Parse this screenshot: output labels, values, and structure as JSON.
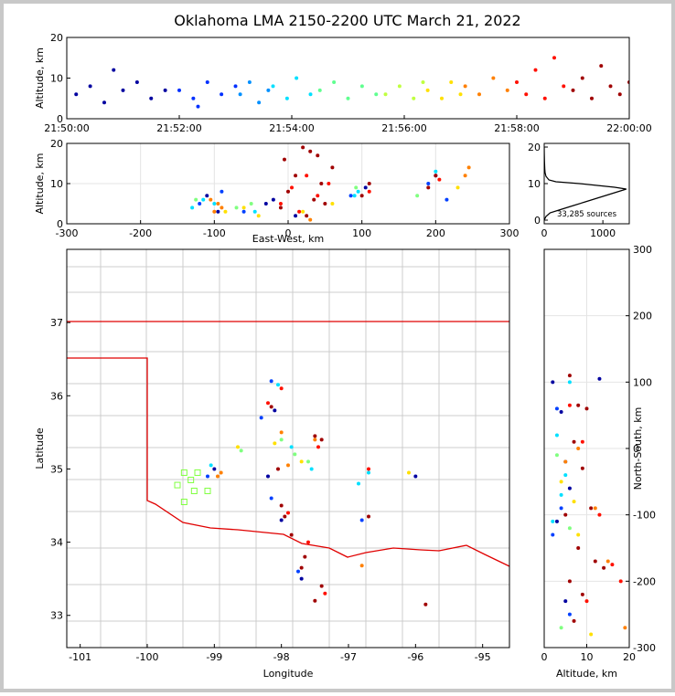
{
  "title": "Oklahoma LMA 2150-2200 UTC March 21, 2022",
  "chart_data": [
    {
      "type": "scatter",
      "ylabel": "Altitude, km",
      "xlim": [
        "21:50:00",
        "22:00:00"
      ],
      "xticks": [
        "21:50:00",
        "21:52:00",
        "21:54:00",
        "21:56:00",
        "21:58:00",
        "22:00:00"
      ],
      "ylim": [
        0,
        20
      ],
      "yticks": [
        0,
        10,
        20
      ],
      "grid": false,
      "series": [
        {
          "color": "#0000a0",
          "x": [
            "21:50:10",
            "21:50:25",
            "21:50:40",
            "21:50:50",
            "21:51:00",
            "21:51:15",
            "21:51:30",
            "21:51:45"
          ],
          "values": [
            6,
            8,
            4,
            12,
            7,
            9,
            5,
            7
          ]
        },
        {
          "color": "#0030ff",
          "x": [
            "21:52:00",
            "21:52:15",
            "21:52:20",
            "21:52:30",
            "21:52:45",
            "21:53:00"
          ],
          "values": [
            7,
            5,
            3,
            9,
            6,
            8
          ]
        },
        {
          "color": "#0090ff",
          "x": [
            "21:53:05",
            "21:53:15",
            "21:53:25",
            "21:53:35"
          ],
          "values": [
            6,
            9,
            4,
            7
          ]
        },
        {
          "color": "#00e0ff",
          "x": [
            "21:53:40",
            "21:53:55",
            "21:54:05",
            "21:54:20"
          ],
          "values": [
            8,
            5,
            10,
            6
          ]
        },
        {
          "color": "#60ff90",
          "x": [
            "21:54:30",
            "21:54:45",
            "21:55:00",
            "21:55:15",
            "21:55:30"
          ],
          "values": [
            7,
            9,
            5,
            8,
            6
          ]
        },
        {
          "color": "#c0ff40",
          "x": [
            "21:55:40",
            "21:55:55",
            "21:56:10",
            "21:56:20"
          ],
          "values": [
            6,
            8,
            5,
            9
          ]
        },
        {
          "color": "#ffe000",
          "x": [
            "21:56:25",
            "21:56:40",
            "21:56:50",
            "21:57:00"
          ],
          "values": [
            7,
            5,
            9,
            6
          ]
        },
        {
          "color": "#ff8000",
          "x": [
            "21:57:05",
            "21:57:20",
            "21:57:35",
            "21:57:50"
          ],
          "values": [
            8,
            6,
            10,
            7
          ]
        },
        {
          "color": "#ff1000",
          "x": [
            "21:58:00",
            "21:58:10",
            "21:58:20",
            "21:58:30",
            "21:58:40",
            "21:58:50"
          ],
          "values": [
            9,
            6,
            12,
            5,
            15,
            8
          ]
        },
        {
          "color": "#a00000",
          "x": [
            "21:59:00",
            "21:59:10",
            "21:59:20",
            "21:59:30",
            "21:59:40",
            "21:59:50",
            "22:00:00"
          ],
          "values": [
            7,
            10,
            5,
            13,
            8,
            6,
            9
          ]
        }
      ]
    },
    {
      "type": "scatter",
      "xlabel": "East-West, km",
      "ylabel": "Altitude, km",
      "xlim": [
        -300,
        300
      ],
      "xticks": [
        -300,
        -200,
        -100,
        0,
        100,
        200,
        300
      ],
      "ylim": [
        0,
        20
      ],
      "yticks": [
        0,
        10,
        20
      ],
      "grid": true,
      "series": [
        {
          "color": "#0000a0",
          "x": [
            -95,
            -110,
            -30,
            10,
            105,
            200,
            -20
          ],
          "values": [
            3,
            7,
            5,
            2,
            9,
            12,
            6
          ]
        },
        {
          "color": "#0040ff",
          "x": [
            -120,
            -90,
            -60,
            85,
            190,
            215
          ],
          "values": [
            5,
            8,
            3,
            7,
            10,
            6
          ]
        },
        {
          "color": "#00e0ff",
          "x": [
            -130,
            -115,
            -100,
            90,
            95,
            -45,
            200
          ],
          "values": [
            4,
            6,
            5,
            7,
            8,
            3,
            13
          ]
        },
        {
          "color": "#80ff80",
          "x": [
            -125,
            -70,
            -50,
            92,
            175
          ],
          "values": [
            6,
            4,
            5,
            9,
            7
          ]
        },
        {
          "color": "#ffe000",
          "x": [
            -85,
            -60,
            -40,
            20,
            60,
            230
          ],
          "values": [
            3,
            4,
            2,
            3,
            5,
            9
          ]
        },
        {
          "color": "#ff8000",
          "x": [
            -100,
            -95,
            -105,
            -90,
            240,
            245,
            30
          ],
          "values": [
            3,
            5,
            6,
            4,
            12,
            14,
            1
          ]
        },
        {
          "color": "#ff1000",
          "x": [
            -10,
            5,
            25,
            40,
            55,
            110,
            205,
            15
          ],
          "values": [
            5,
            9,
            12,
            7,
            10,
            8,
            11,
            3
          ]
        },
        {
          "color": "#a00000",
          "x": [
            -10,
            0,
            10,
            -5,
            20,
            35,
            45,
            60,
            30,
            50,
            100,
            110,
            190,
            200,
            25,
            40
          ],
          "values": [
            4,
            8,
            12,
            16,
            19,
            6,
            10,
            14,
            18,
            5,
            7,
            10,
            9,
            12,
            2,
            17
          ]
        }
      ]
    },
    {
      "type": "line",
      "annotation": "33,285 sources",
      "xlim": [
        0,
        1450
      ],
      "xticks": [
        0,
        1000
      ],
      "ylim": [
        -1,
        21
      ],
      "yticks": [
        0,
        10,
        20
      ],
      "grid": false,
      "series": [
        {
          "color": "#000000",
          "x": [
            0,
            30,
            100,
            300,
            500,
            700,
            900,
            1100,
            1300,
            1400,
            1200,
            600,
            200,
            80,
            30,
            15,
            10,
            5,
            2,
            0
          ],
          "values": [
            0,
            1,
            2,
            3,
            4,
            5,
            6,
            7,
            8,
            8.5,
            9,
            10,
            10.5,
            11,
            12,
            13,
            14,
            16,
            18,
            20
          ]
        }
      ]
    },
    {
      "type": "scatter",
      "xlabel": "Longitude",
      "ylabel": "Latitude",
      "xlim": [
        -101.2,
        -94.6
      ],
      "xticks": [
        -101,
        -100,
        -99,
        -98,
        -97,
        -96,
        -95
      ],
      "ylim": [
        32.56,
        38.0
      ],
      "yticks": [
        33,
        34,
        35,
        36,
        37
      ],
      "grid": false,
      "series": [
        {
          "color": "#0000a0",
          "x": [
            -98.1,
            -98.0,
            -98.2,
            -97.7,
            -99.0,
            -96.0
          ],
          "values": [
            35.8,
            34.3,
            34.9,
            33.5,
            35.0,
            34.9
          ]
        },
        {
          "color": "#0040ff",
          "x": [
            -98.3,
            -98.15,
            -97.75,
            -99.1,
            -96.8,
            -98.15
          ],
          "values": [
            35.7,
            34.6,
            33.6,
            34.9,
            34.3,
            36.2
          ]
        },
        {
          "color": "#00e0ff",
          "x": [
            -98.05,
            -97.85,
            -97.55,
            -96.85,
            -96.7,
            -99.05
          ],
          "values": [
            36.15,
            35.3,
            35.0,
            34.8,
            34.95,
            35.05
          ]
        },
        {
          "color": "#80ff80",
          "x": [
            -98.0,
            -97.8,
            -98.6,
            -97.6
          ],
          "values": [
            35.4,
            35.2,
            35.25,
            35.1
          ]
        },
        {
          "color": "#ffe000",
          "x": [
            -98.1,
            -97.7,
            -98.65,
            -96.1
          ],
          "values": [
            35.35,
            35.1,
            35.3,
            34.95
          ]
        },
        {
          "color": "#ff8000",
          "x": [
            -98.9,
            -98.95,
            -98.0,
            -97.5,
            -96.8,
            -97.9
          ],
          "values": [
            34.95,
            34.9,
            35.5,
            35.4,
            33.68,
            35.05
          ]
        },
        {
          "color": "#ff1000",
          "x": [
            -98.0,
            -97.45,
            -97.9,
            -97.6,
            -97.35,
            -98.2,
            -96.7
          ],
          "values": [
            36.1,
            35.3,
            34.4,
            34.0,
            33.3,
            35.9,
            35.0
          ]
        },
        {
          "color": "#a00000",
          "x": [
            -98.0,
            -97.95,
            -98.05,
            -97.5,
            -97.4,
            -97.65,
            -97.7,
            -97.5,
            -96.7,
            -95.85,
            -98.15,
            -97.85,
            -97.4
          ],
          "values": [
            34.5,
            34.35,
            35.0,
            35.45,
            35.4,
            33.8,
            33.65,
            33.2,
            34.35,
            33.15,
            35.85,
            34.1,
            33.4
          ]
        },
        {
          "color": "#80ff40",
          "marker": "square-open",
          "x": [
            -99.45,
            -99.35,
            -99.3,
            -99.55,
            -99.45,
            -99.1,
            -99.25
          ],
          "values": [
            34.95,
            34.85,
            34.7,
            34.78,
            34.55,
            34.7,
            34.95
          ]
        }
      ]
    },
    {
      "type": "scatter",
      "xlabel": "Altitude, km",
      "ylabel": "North-South, km",
      "ytick_side": "right",
      "xlim": [
        0,
        20
      ],
      "xticks": [
        0,
        10,
        20
      ],
      "ylim": [
        -300,
        300
      ],
      "yticks": [
        -300,
        -200,
        -100,
        0,
        100,
        200,
        300
      ],
      "grid": true,
      "series": [
        {
          "color": "#0000a0",
          "x": [
            2,
            4,
            6,
            3,
            5,
            13
          ],
          "values": [
            100,
            55,
            -60,
            -110,
            -230,
            105
          ]
        },
        {
          "color": "#0040ff",
          "x": [
            3,
            5,
            2,
            4,
            6
          ],
          "values": [
            60,
            -20,
            -130,
            -90,
            -250
          ]
        },
        {
          "color": "#00e0ff",
          "x": [
            2,
            3,
            4,
            5,
            6
          ],
          "values": [
            -110,
            20,
            -70,
            -40,
            100
          ]
        },
        {
          "color": "#80ff80",
          "x": [
            3,
            6,
            4
          ],
          "values": [
            -10,
            -120,
            -270
          ]
        },
        {
          "color": "#ffe000",
          "x": [
            4,
            8,
            11,
            7
          ],
          "values": [
            -50,
            -130,
            -280,
            -80
          ]
        },
        {
          "color": "#ff8000",
          "x": [
            8,
            12,
            15,
            19,
            5
          ],
          "values": [
            0,
            -90,
            -170,
            -270,
            -20
          ]
        },
        {
          "color": "#ff1000",
          "x": [
            6,
            9,
            13,
            16,
            18,
            10
          ],
          "values": [
            65,
            10,
            -100,
            -175,
            -200,
            -230
          ]
        },
        {
          "color": "#a00000",
          "x": [
            6,
            8,
            10,
            7,
            9,
            11,
            5,
            8,
            12,
            6,
            9,
            7,
            14
          ],
          "values": [
            110,
            65,
            60,
            10,
            -30,
            -90,
            -100,
            -150,
            -170,
            -200,
            -220,
            -260,
            -180
          ]
        }
      ]
    }
  ]
}
